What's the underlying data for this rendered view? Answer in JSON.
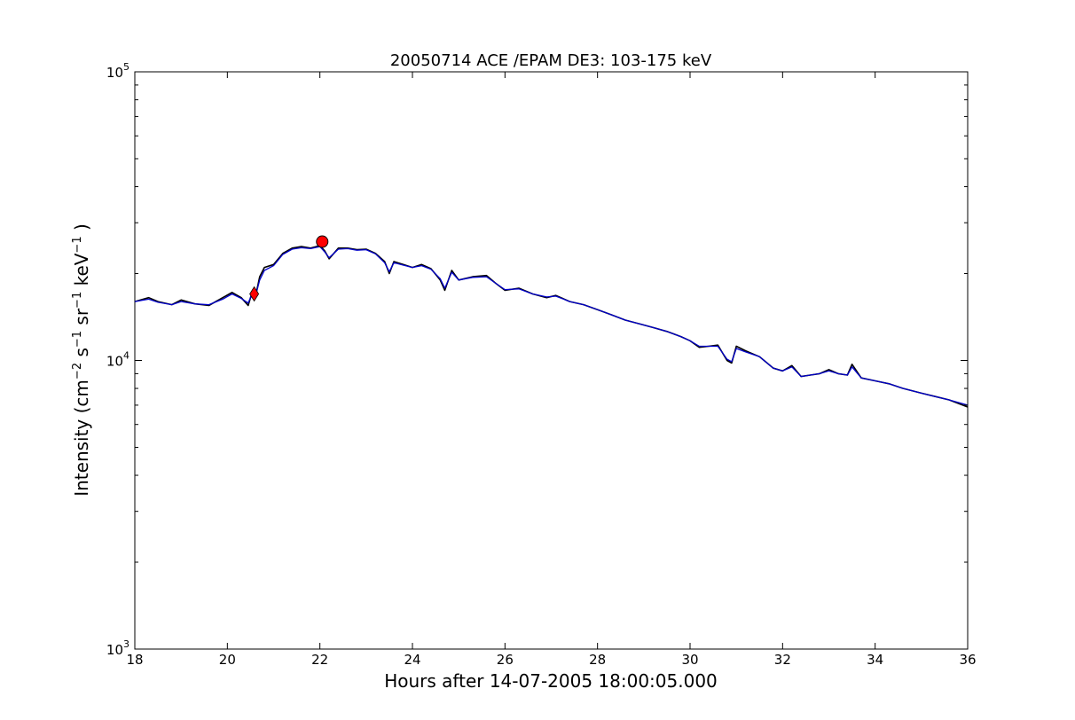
{
  "chart_data": {
    "type": "line",
    "title": "20050714 ACE /EPAM DE3: 103-175 keV",
    "xlabel": "Hours after 14-07-2005 18:00:05.000",
    "ylabel": {
      "base": "Intensity (cm",
      "exp1": "−2",
      "s": " s",
      "exp2": "−1",
      "sr": " sr",
      "exp3": "−1",
      "kev": " keV",
      "exp4": "−1",
      "close": " )"
    },
    "xlim": [
      18,
      36
    ],
    "ylim": [
      1000,
      100000
    ],
    "yscale": "log",
    "grid": false,
    "x_ticks": [
      "18",
      "20",
      "22",
      "24",
      "26",
      "28",
      "30",
      "32",
      "34",
      "36"
    ],
    "y_ticks": [
      {
        "base": "10",
        "exp": "3",
        "value": 1000
      },
      {
        "base": "10",
        "exp": "4",
        "value": 10000
      },
      {
        "base": "10",
        "exp": "5",
        "value": 100000
      }
    ],
    "series": [
      {
        "color": "#000000",
        "x": [
          18.0,
          18.3,
          18.5,
          18.8,
          19.0,
          19.3,
          19.6,
          19.9,
          20.1,
          20.3,
          20.45,
          20.55,
          20.62,
          20.7,
          20.8,
          21.0,
          21.2,
          21.4,
          21.6,
          21.8,
          22.0,
          22.1,
          22.2,
          22.4,
          22.6,
          22.8,
          23.0,
          23.2,
          23.4,
          23.5,
          23.6,
          23.8,
          24.0,
          24.2,
          24.4,
          24.6,
          24.7,
          24.85,
          25.0,
          25.3,
          25.6,
          25.8,
          26.0,
          26.3,
          26.6,
          26.9,
          27.1,
          27.4,
          27.7,
          28.0,
          28.3,
          28.6,
          28.9,
          29.2,
          29.5,
          29.8,
          30.0,
          30.2,
          30.4,
          30.6,
          30.8,
          30.9,
          31.0,
          31.2,
          31.5,
          31.8,
          32.0,
          32.2,
          32.4,
          32.6,
          32.8,
          33.0,
          33.2,
          33.4,
          33.5,
          33.7,
          34.0,
          34.3,
          34.6,
          35.0,
          35.3,
          35.6,
          36.0
        ],
        "y": [
          16000,
          16500,
          16000,
          15600,
          16200,
          15700,
          15500,
          16500,
          17200,
          16500,
          15500,
          17500,
          17000,
          19500,
          21000,
          21500,
          23500,
          24500,
          24800,
          24500,
          25000,
          24000,
          22500,
          24500,
          24500,
          24200,
          24300,
          23500,
          22000,
          20000,
          22000,
          21500,
          21000,
          21500,
          20800,
          19000,
          17500,
          20500,
          19000,
          19500,
          19700,
          18500,
          17500,
          17800,
          17000,
          16500,
          16800,
          16000,
          15600,
          15000,
          14400,
          13800,
          13400,
          13000,
          12600,
          12100,
          11700,
          11100,
          11200,
          11300,
          10000,
          9800,
          11200,
          10800,
          10300,
          9400,
          9200,
          9600,
          8800,
          8900,
          9000,
          9300,
          9000,
          8900,
          9700,
          8700,
          8500,
          8300,
          8000,
          7700,
          7500,
          7300,
          6900
        ]
      },
      {
        "color": "#0000cc",
        "x": [
          18.0,
          18.3,
          18.5,
          18.8,
          19.0,
          19.3,
          19.6,
          19.9,
          20.1,
          20.3,
          20.45,
          20.55,
          20.62,
          20.7,
          20.8,
          21.0,
          21.2,
          21.4,
          21.6,
          21.8,
          22.0,
          22.1,
          22.2,
          22.4,
          22.6,
          22.8,
          23.0,
          23.2,
          23.4,
          23.5,
          23.6,
          23.8,
          24.0,
          24.2,
          24.4,
          24.6,
          24.7,
          24.85,
          25.0,
          25.3,
          25.6,
          25.8,
          26.0,
          26.3,
          26.6,
          26.9,
          27.1,
          27.4,
          27.7,
          28.0,
          28.3,
          28.6,
          28.9,
          29.2,
          29.5,
          29.8,
          30.0,
          30.2,
          30.4,
          30.6,
          30.8,
          30.9,
          31.0,
          31.2,
          31.5,
          31.8,
          32.0,
          32.2,
          32.4,
          32.6,
          32.8,
          33.0,
          33.2,
          33.4,
          33.5,
          33.7,
          34.0,
          34.3,
          34.6,
          35.0,
          35.3,
          35.6,
          36.0
        ],
        "y": [
          16000,
          16300,
          15900,
          15600,
          16000,
          15700,
          15600,
          16300,
          17000,
          16400,
          15800,
          17200,
          17000,
          19000,
          20500,
          21300,
          23300,
          24300,
          24600,
          24400,
          24800,
          23800,
          22700,
          24300,
          24400,
          24100,
          24200,
          23400,
          21800,
          20300,
          21800,
          21400,
          21000,
          21300,
          20700,
          19200,
          17800,
          20200,
          19000,
          19400,
          19500,
          18500,
          17600,
          17700,
          17000,
          16600,
          16700,
          16000,
          15600,
          15000,
          14400,
          13800,
          13400,
          13000,
          12600,
          12100,
          11700,
          11200,
          11200,
          11200,
          10100,
          9900,
          11000,
          10700,
          10300,
          9400,
          9200,
          9500,
          8800,
          8900,
          9000,
          9200,
          9000,
          8900,
          9500,
          8700,
          8500,
          8300,
          8000,
          7700,
          7500,
          7300,
          7000
        ]
      }
    ],
    "markers": [
      {
        "shape": "diamond",
        "x": 20.58,
        "y": 17000,
        "color": "#ff0000"
      },
      {
        "shape": "circle",
        "x": 22.05,
        "y": 25800,
        "color": "#ff0000"
      }
    ]
  }
}
